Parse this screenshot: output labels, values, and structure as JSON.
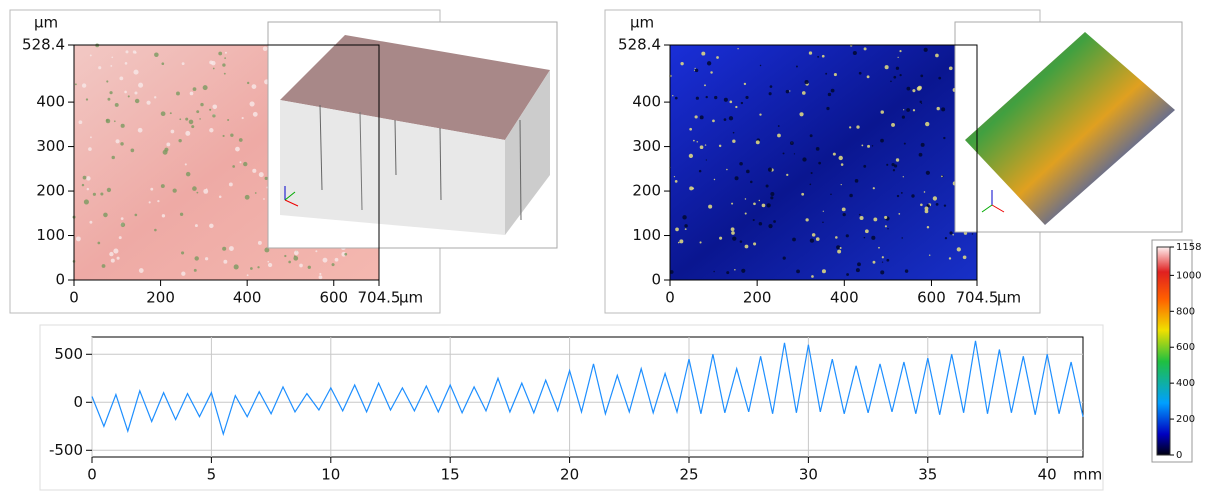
{
  "chart_data": [
    {
      "type": "image",
      "y_label": "µm",
      "x_label": "µm",
      "xlim": [
        0,
        704.5
      ],
      "xticks": [
        0,
        200,
        400,
        600,
        704.5
      ],
      "ylim": [
        0,
        528.4
      ],
      "yticks": [
        0,
        100,
        200,
        300,
        400,
        528.4
      ],
      "colormap": "pink"
    },
    {
      "type": "image",
      "y_label": "µm",
      "x_label": "µm",
      "xlim": [
        0,
        704.5
      ],
      "xticks": [
        0,
        200,
        400,
        600,
        704.5
      ],
      "ylim": [
        0,
        528.4
      ],
      "yticks": [
        0,
        100,
        200,
        300,
        400,
        528.4
      ],
      "colormap": "rainbow"
    },
    {
      "type": "line",
      "x_label": "mm",
      "xlim": [
        0,
        41.5
      ],
      "xticks": [
        0,
        5,
        10,
        15,
        20,
        25,
        30,
        35,
        40
      ],
      "ylim": [
        -570,
        680
      ],
      "yticks": [
        -500,
        0,
        500
      ],
      "grid": true,
      "color": "#1e8fff",
      "x": [
        0,
        0.5,
        1,
        1.5,
        2,
        2.5,
        3,
        3.5,
        4,
        4.5,
        5,
        5.5,
        6,
        6.5,
        7,
        7.5,
        8,
        8.5,
        9,
        9.5,
        10,
        10.5,
        11,
        11.5,
        12,
        12.5,
        13,
        13.5,
        14,
        14.5,
        15,
        15.5,
        16,
        16.5,
        17,
        17.5,
        18,
        18.5,
        19,
        19.5,
        20,
        20.5,
        21,
        21.5,
        22,
        22.5,
        23,
        23.5,
        24,
        24.5,
        25,
        25.5,
        26,
        26.5,
        27,
        27.5,
        28,
        28.5,
        29,
        29.5,
        30,
        30.5,
        31,
        31.5,
        32,
        32.5,
        33,
        33.5,
        34,
        34.5,
        35,
        35.5,
        36,
        36.5,
        37,
        37.5,
        38,
        38.5,
        39,
        39.5,
        40,
        40.5,
        41,
        41.5
      ],
      "values": [
        60,
        -250,
        80,
        -300,
        120,
        -200,
        100,
        -180,
        90,
        -150,
        100,
        -330,
        70,
        -150,
        110,
        -120,
        160,
        -100,
        90,
        -80,
        150,
        -90,
        180,
        -100,
        200,
        -80,
        150,
        -90,
        170,
        -100,
        180,
        -110,
        160,
        -90,
        250,
        -100,
        200,
        -110,
        230,
        -90,
        330,
        -100,
        400,
        -120,
        280,
        -100,
        350,
        -110,
        300,
        -100,
        450,
        -120,
        500,
        -110,
        350,
        -100,
        480,
        -120,
        620,
        -110,
        600,
        -100,
        450,
        -120,
        380,
        -110,
        400,
        -100,
        420,
        -120,
        460,
        -130,
        500,
        -110,
        640,
        -120,
        550,
        -110,
        480,
        -130,
        500,
        -120,
        420,
        -150
      ]
    },
    {
      "type": "colorbar",
      "ylim": [
        0,
        1158
      ],
      "yticks": [
        0,
        200,
        400,
        600,
        800,
        1000,
        1158
      ]
    }
  ]
}
